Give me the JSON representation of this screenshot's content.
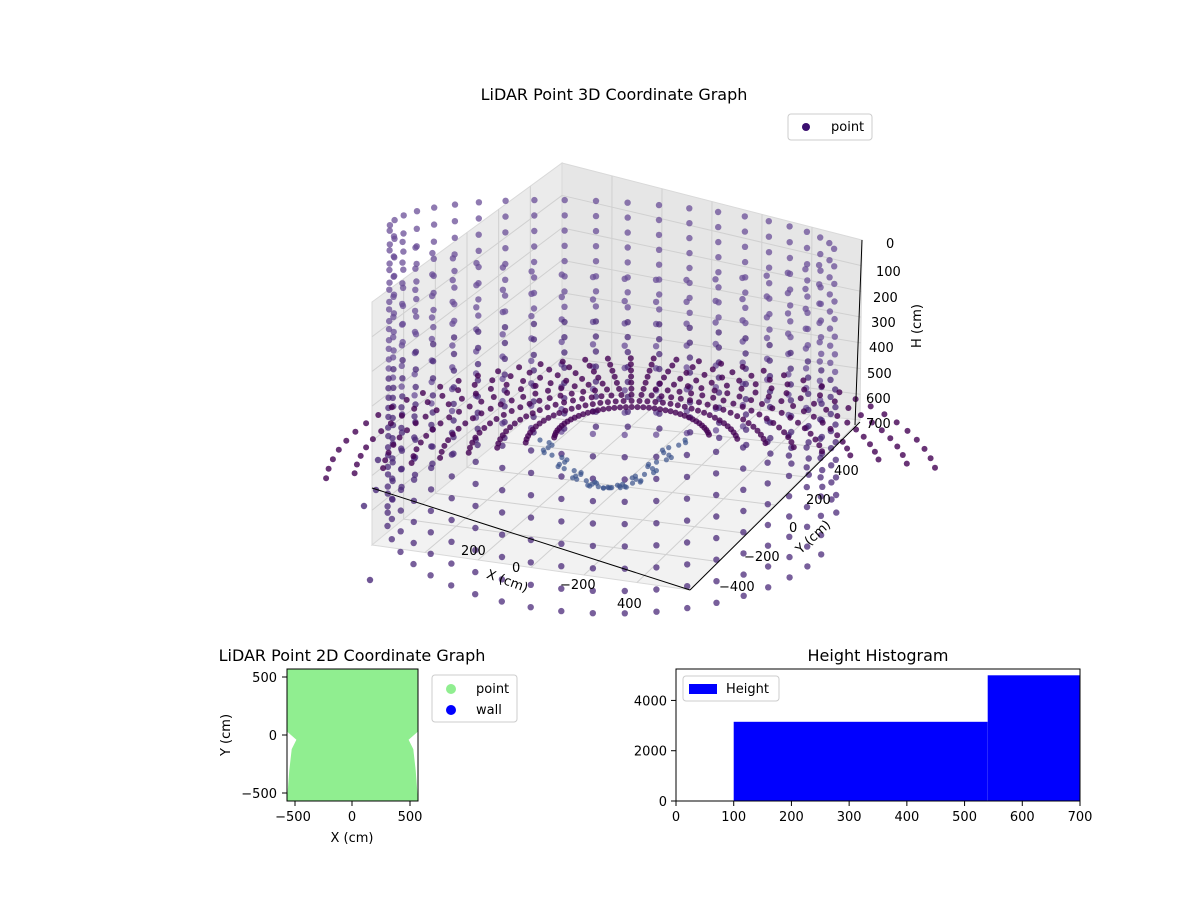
{
  "chart_data": [
    {
      "type": "scatter3d",
      "title": "LiDAR Point 3D Coordinate Graph",
      "xlabel": "X (cm)",
      "ylabel": "Y (cm)",
      "zlabel": "H (cm)",
      "xticks": [
        "200",
        "0",
        "−200",
        "400"
      ],
      "yticks": [
        "400",
        "200",
        "0",
        "−200",
        "−400"
      ],
      "zticks": [
        "0",
        "100",
        "200",
        "300",
        "400",
        "500",
        "600",
        "700"
      ],
      "zlim": [
        700,
        0
      ],
      "legend": [
        {
          "label": "point",
          "color": "#3b0f6f"
        }
      ],
      "legend_position": "upper-right",
      "colormap": [
        "#440154",
        "#3b528b",
        "#21908d"
      ]
    },
    {
      "type": "scatter",
      "title": "LiDAR Point 2D Coordinate Graph",
      "xlabel": "X (cm)",
      "ylabel": "Y (cm)",
      "xlim": [
        -560,
        560
      ],
      "ylim": [
        -560,
        560
      ],
      "xticks": [
        "−500",
        "0",
        "500"
      ],
      "yticks": [
        "500",
        "0",
        "−500"
      ],
      "series": [
        {
          "name": "point",
          "color": "#90ee90"
        },
        {
          "name": "wall",
          "color": "#0000ff"
        }
      ],
      "legend_position": "outside-right"
    },
    {
      "type": "bar",
      "title": "Height Histogram",
      "bins": [
        [
          0,
          100
        ],
        [
          100,
          540
        ],
        [
          540,
          700
        ]
      ],
      "values": [
        0,
        3150,
        5000
      ],
      "xlim": [
        0,
        700
      ],
      "ylim": [
        0,
        5250
      ],
      "xticks": [
        "0",
        "100",
        "200",
        "300",
        "400",
        "500",
        "600",
        "700"
      ],
      "yticks": [
        "0",
        "2000",
        "4000"
      ],
      "color": "#0000ff",
      "legend": [
        {
          "label": "Height",
          "color": "#0000ff"
        }
      ],
      "legend_position": "upper-left"
    }
  ]
}
